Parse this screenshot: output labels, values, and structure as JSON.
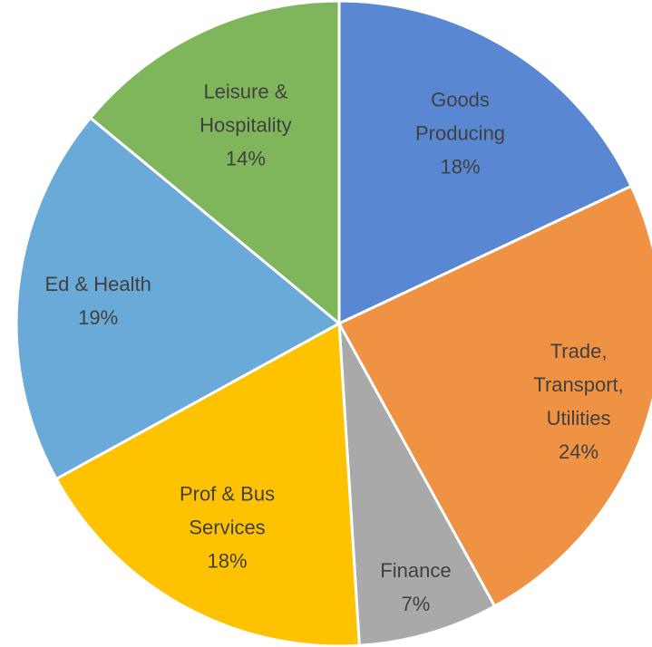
{
  "chart_data": {
    "type": "pie",
    "categories": [
      "Goods Producing",
      "Trade, Transport, Utilities",
      "Finance",
      "Prof & Bus Services",
      "Ed & Health",
      "Leisure & Hospitality"
    ],
    "values": [
      18,
      24,
      7,
      18,
      19,
      14
    ],
    "value_labels": [
      "18%",
      "24%",
      "7%",
      "18%",
      "19%",
      "14%"
    ],
    "colors": [
      "#5987d1",
      "#f09243",
      "#a9a9a9",
      "#fec201",
      "#6aaad9",
      "#80b65b"
    ]
  }
}
